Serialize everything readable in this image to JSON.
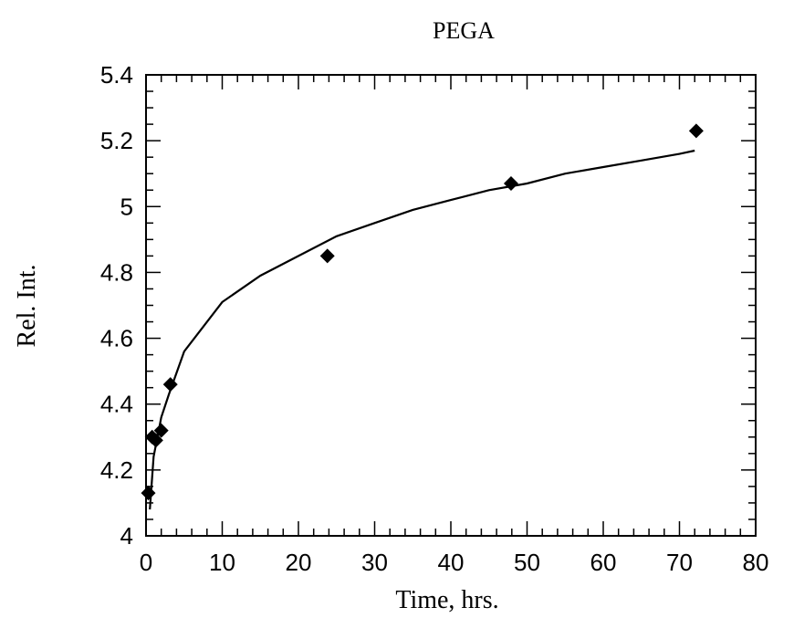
{
  "chart_data": {
    "type": "scatter",
    "title": "PEGA",
    "xlabel": "Time, hrs.",
    "ylabel": "Rel. Int.",
    "xlim": [
      0,
      80
    ],
    "ylim": [
      4,
      5.4
    ],
    "x_ticks": [
      0,
      10,
      20,
      30,
      40,
      50,
      60,
      70,
      80
    ],
    "y_ticks": [
      4,
      4.2,
      4.4,
      4.6,
      4.8,
      5,
      5.2,
      5.4
    ],
    "x_tick_labels": [
      "0",
      "10",
      "20",
      "30",
      "40",
      "50",
      "60",
      "70",
      "80"
    ],
    "y_tick_labels": [
      "4",
      "4.2",
      "4.4",
      "4.6",
      "4.8",
      "5",
      "5.2",
      "5.4"
    ],
    "grid": false,
    "series": [
      {
        "marker": "diamond",
        "color": "#000000",
        "points": [
          {
            "x": 0.3,
            "y": 4.13
          },
          {
            "x": 0.8,
            "y": 4.3
          },
          {
            "x": 1.3,
            "y": 4.29
          },
          {
            "x": 2.0,
            "y": 4.32
          },
          {
            "x": 3.2,
            "y": 4.46
          },
          {
            "x": 23.8,
            "y": 4.85
          },
          {
            "x": 47.9,
            "y": 5.07
          },
          {
            "x": 72.2,
            "y": 5.23
          }
        ]
      }
    ],
    "fit_curve": {
      "style": "solid",
      "color": "#000000",
      "points": [
        {
          "x": 0.5,
          "y": 4.08
        },
        {
          "x": 1,
          "y": 4.24
        },
        {
          "x": 2,
          "y": 4.36
        },
        {
          "x": 3,
          "y": 4.43
        },
        {
          "x": 5,
          "y": 4.56
        },
        {
          "x": 10,
          "y": 4.71
        },
        {
          "x": 15,
          "y": 4.79
        },
        {
          "x": 20,
          "y": 4.85
        },
        {
          "x": 25,
          "y": 4.91
        },
        {
          "x": 30,
          "y": 4.95
        },
        {
          "x": 35,
          "y": 4.99
        },
        {
          "x": 40,
          "y": 5.02
        },
        {
          "x": 45,
          "y": 5.05
        },
        {
          "x": 50,
          "y": 5.07
        },
        {
          "x": 55,
          "y": 5.1
        },
        {
          "x": 60,
          "y": 5.12
        },
        {
          "x": 65,
          "y": 5.14
        },
        {
          "x": 70,
          "y": 5.16
        },
        {
          "x": 72,
          "y": 5.17
        }
      ]
    }
  }
}
